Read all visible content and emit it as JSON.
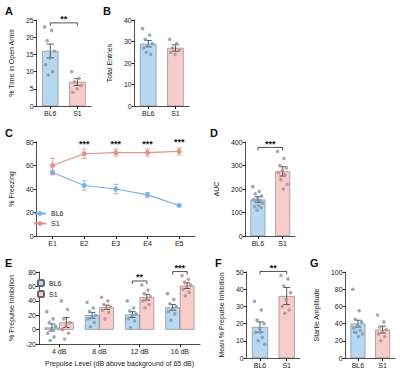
{
  "chart_data": [
    {
      "title": "A",
      "type": "bar",
      "categories": [
        "BL6",
        "S1"
      ],
      "values": [
        16,
        7
      ],
      "errors": [
        2,
        1
      ],
      "points": [
        [
          23,
          22,
          19,
          16,
          14,
          12,
          10,
          9
        ],
        [
          10,
          8,
          7,
          6,
          5,
          4
        ]
      ],
      "colors": [
        "#b8d8f2",
        "#f9cccc"
      ],
      "ylabel": "% Time in Open Arms",
      "ylim": [
        0,
        25
      ],
      "yticks": [
        0,
        5,
        10,
        15,
        20,
        25
      ],
      "grid": false,
      "significance": [
        {
          "from": 0,
          "to": 1,
          "label": "**"
        }
      ]
    },
    {
      "title": "B",
      "type": "bar",
      "categories": [
        "BL6",
        "S1"
      ],
      "values": [
        29,
        27
      ],
      "errors": [
        1.5,
        1.5
      ],
      "points": [
        [
          36,
          33,
          31,
          29,
          28,
          27,
          24,
          25
        ],
        [
          31,
          29,
          27,
          26,
          24,
          25
        ]
      ],
      "colors": [
        "#b8d8f2",
        "#f9cccc"
      ],
      "ylabel": "Total Entries",
      "ylim": [
        0,
        40
      ],
      "yticks": [
        0,
        10,
        20,
        30,
        40
      ],
      "grid": false
    },
    {
      "title": "C",
      "type": "line",
      "categories": [
        "E1",
        "E2",
        "E3",
        "E4",
        "E5"
      ],
      "series": [
        {
          "name": "BL6",
          "color": "#7eb1e0",
          "values": [
            54,
            43,
            40,
            35,
            26
          ],
          "errors": [
            2,
            4,
            4,
            2,
            1
          ]
        },
        {
          "name": "S1",
          "color": "#e58f8f",
          "values": [
            60,
            70,
            71,
            71,
            72
          ],
          "errors": [
            6,
            4,
            3,
            3,
            3
          ]
        }
      ],
      "marker": "circle",
      "ylabel": "% Freezing",
      "legend": "lower left",
      "ylim": [
        0,
        80
      ],
      "yticks": [
        0,
        20,
        40,
        60,
        80
      ],
      "grid": false,
      "significance": [
        {
          "category": 1,
          "label": "***"
        },
        {
          "category": 2,
          "label": "***"
        },
        {
          "category": 3,
          "label": "***"
        },
        {
          "category": 4,
          "label": "***"
        }
      ]
    },
    {
      "title": "D",
      "type": "bar",
      "categories": [
        "BL6",
        "S1"
      ],
      "values": [
        155,
        275
      ],
      "errors": [
        12,
        20
      ],
      "points": [
        [
          210,
          190,
          180,
          170,
          160,
          155,
          150,
          145,
          140,
          130,
          125,
          120,
          110
        ],
        [
          360,
          330,
          300,
          290,
          280,
          270,
          260,
          240,
          220,
          200
        ]
      ],
      "colors": [
        "#b8d8f2",
        "#f9cccc"
      ],
      "ylabel": "AUC",
      "ylim": [
        0,
        400
      ],
      "yticks": [
        0,
        100,
        200,
        300,
        400
      ],
      "grid": false,
      "significance": [
        {
          "from": 0,
          "to": 1,
          "label": "***"
        }
      ]
    },
    {
      "title": "E",
      "type": "bar",
      "categories": [
        "4 dB",
        "8 dB",
        "12 dB",
        "16 dB"
      ],
      "series": [
        {
          "name": "BL6",
          "color": "#b8d8f2",
          "values": [
            3,
            20,
            21,
            31
          ],
          "errors": [
            5,
            4,
            4,
            4
          ],
          "points": [
            [
              25,
              15,
              10,
              5,
              0,
              -5,
              -10,
              -15
            ],
            [
              38,
              30,
              25,
              20,
              18,
              15,
              10,
              4
            ],
            [
              40,
              30,
              26,
              22,
              20,
              15,
              12,
              3
            ],
            [
              50,
              42,
              36,
              32,
              28,
              25,
              22,
              13
            ]
          ]
        },
        {
          "name": "S1",
          "color": "#f9cccc",
          "values": [
            10,
            31,
            45,
            61
          ],
          "errors": [
            7,
            3,
            4,
            4
          ],
          "points": [
            [
              40,
              28,
              15,
              10,
              5,
              0,
              -5,
              -13
            ],
            [
              45,
              40,
              35,
              32,
              30,
              27,
              24,
              15
            ],
            [
              62,
              55,
              50,
              46,
              42,
              40,
              35,
              30
            ],
            [
              75,
              70,
              66,
              62,
              60,
              56,
              52,
              47
            ]
          ]
        }
      ],
      "ylabel": "% Prepulse Inhibition",
      "xlabel": "Prepulse Level (dB above background of 65 dB)",
      "legend": "upper left",
      "ylim": [
        -20,
        80
      ],
      "yticks": [
        -20,
        0,
        20,
        40,
        60,
        80
      ],
      "grid": false,
      "significance": [
        {
          "category": 2,
          "label": "**"
        },
        {
          "category": 3,
          "label": "***"
        }
      ]
    },
    {
      "title": "F",
      "type": "bar",
      "categories": [
        "BL6",
        "S1"
      ],
      "values": [
        18,
        36
      ],
      "errors": [
        3,
        5
      ],
      "points": [
        [
          33,
          28,
          22,
          20,
          17,
          15,
          12,
          10,
          8,
          15
        ],
        [
          48,
          46,
          42,
          38,
          34,
          30,
          28,
          26
        ]
      ],
      "colors": [
        "#b8d8f2",
        "#f9cccc"
      ],
      "ylabel": "Mean % Prepulse Inhibition",
      "ylim": [
        0,
        50
      ],
      "yticks": [
        0,
        10,
        20,
        30,
        40,
        50
      ],
      "grid": false,
      "significance": [
        {
          "from": 0,
          "to": 1,
          "label": "**"
        }
      ]
    },
    {
      "title": "G",
      "type": "bar",
      "categories": [
        "BL6",
        "S1"
      ],
      "values": [
        40,
        33
      ],
      "errors": [
        4,
        4
      ],
      "points": [
        [
          80,
          55,
          45,
          42,
          38,
          35,
          32,
          30,
          28,
          25,
          30
        ],
        [
          50,
          42,
          36,
          33,
          30,
          28,
          25,
          20
        ]
      ],
      "colors": [
        "#b8d8f2",
        "#f9cccc"
      ],
      "ylabel": "Startle Amplitude",
      "ylim": [
        0,
        100
      ],
      "yticks": [
        0,
        20,
        40,
        60,
        80,
        100
      ],
      "grid": false
    }
  ]
}
